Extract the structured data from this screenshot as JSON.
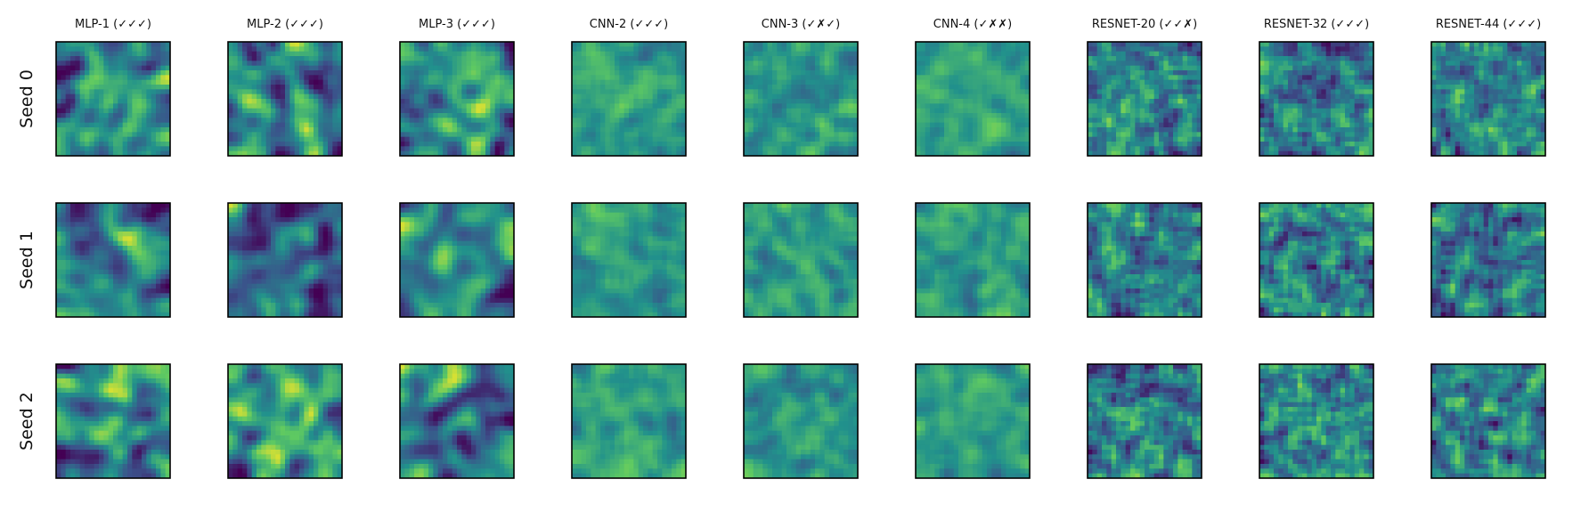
{
  "chart_data": {
    "type": "heatmap",
    "title": "",
    "columns": [
      "MLP-1 (✓✓✓)",
      "MLP-2 (✓✓✓)",
      "MLP-3 (✓✓✓)",
      "CNN-2 (✓✓✓)",
      "CNN-3 (✓✗✓)",
      "CNN-4 (✓✗✗)",
      "RESNET-20 (✓✓✗)",
      "RESNET-32 (✓✓✓)",
      "RESNET-44 (✓✓✓)"
    ],
    "rows": [
      "Seed 0",
      "Seed 1",
      "Seed 2"
    ],
    "colormap": "viridis",
    "colors": [
      "#440154",
      "#3b528b",
      "#21918c",
      "#5ec962",
      "#fde725"
    ],
    "grid": false,
    "axis_ticks": false,
    "panel_grid_size": 24,
    "panel_styles": {
      "MLP": {
        "base": 0.45,
        "contrast": 0.75,
        "smooth": 3
      },
      "CNN": {
        "base": 0.55,
        "contrast": 0.35,
        "smooth": 2
      },
      "RESNET": {
        "base": 0.42,
        "contrast": 0.6,
        "smooth": 1
      }
    }
  }
}
